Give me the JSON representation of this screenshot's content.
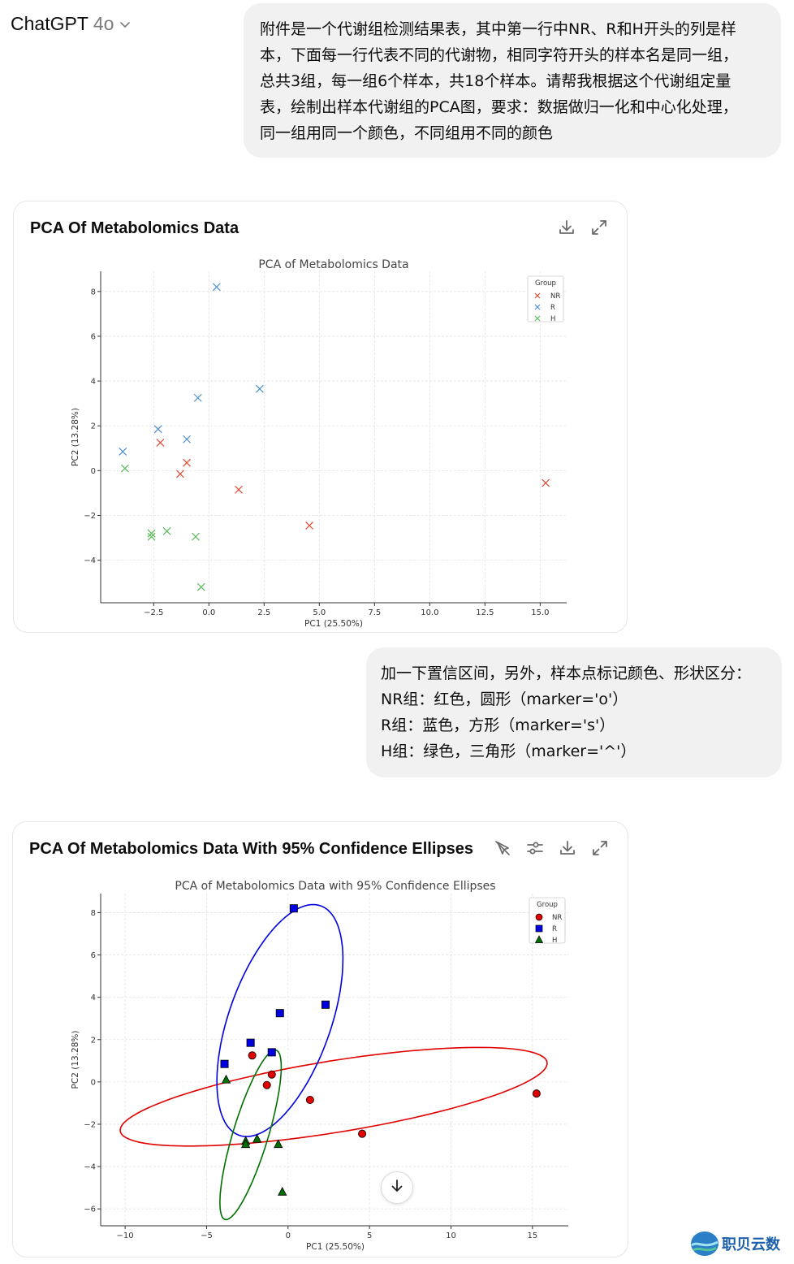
{
  "header": {
    "model_name": "ChatGPT",
    "model_version": "4o"
  },
  "messages": {
    "user1_lines": [
      "附件是一个代谢组检测结果表，其中第一行中NR、R和H开头的列是样",
      "本，下面每一行代表不同的代谢物，相同字符开头的样本名是同一组，",
      "总共3组，每一组6个样本，共18个样本。请帮我根据这个代谢组定量",
      "表，绘制出样本代谢组的PCA图，要求：数据做归一化和中心化处理，",
      "同一组用同一个颜色，不同组用不同的颜色"
    ],
    "user2_lines": [
      "加一下置信区间，另外，样本点标记颜色、形状区分：",
      "NR组：红色，圆形（marker='o'）",
      "R组：蓝色，方形（marker='s'）",
      "H组：绿色，三角形（marker='^'）"
    ]
  },
  "card1": {
    "title": "PCA Of Metabolomics Data"
  },
  "card2": {
    "title": "PCA Of Metabolomics Data With 95% Confidence Ellipses"
  },
  "icons": [
    "download-icon",
    "expand-icon",
    "interactive-off-icon",
    "settings-sliders-icon",
    "arrow-down-icon"
  ],
  "watermark": {
    "text": "职贝云数"
  },
  "chart_data": [
    {
      "type": "scatter",
      "title": "PCA of Metabolomics Data",
      "xlabel": "PC1 (25.50%)",
      "ylabel": "PC2 (13.28%)",
      "xlim": [
        -4.9,
        16.2
      ],
      "ylim": [
        -5.9,
        8.9
      ],
      "xticks": [
        -2.5,
        0.0,
        2.5,
        5.0,
        7.5,
        10.0,
        12.5,
        15.0
      ],
      "xtick_labels": [
        "−2.5",
        "0.0",
        "2.5",
        "5.0",
        "7.5",
        "10.0",
        "12.5",
        "15.0"
      ],
      "yticks": [
        -4,
        -2,
        0,
        2,
        4,
        6,
        8
      ],
      "ytick_labels": [
        "−4",
        "−2",
        "0",
        "2",
        "4",
        "6",
        "8"
      ],
      "grid": true,
      "legend_title": "Group",
      "legend_position": "top-right",
      "marker": "x",
      "series": [
        {
          "name": "NR",
          "color": "#e24a33",
          "points": [
            [
              -2.2,
              1.25
            ],
            [
              -1.0,
              0.35
            ],
            [
              -1.3,
              -0.15
            ],
            [
              1.35,
              -0.85
            ],
            [
              4.55,
              -2.45
            ],
            [
              15.25,
              -0.55
            ]
          ]
        },
        {
          "name": "R",
          "color": "#4c8fd2",
          "points": [
            [
              -3.9,
              0.85
            ],
            [
              -2.3,
              1.85
            ],
            [
              -1.0,
              1.4
            ],
            [
              -0.5,
              3.25
            ],
            [
              0.35,
              8.2
            ],
            [
              2.3,
              3.65
            ]
          ]
        },
        {
          "name": "H",
          "color": "#5cbb5c",
          "points": [
            [
              -3.8,
              0.1
            ],
            [
              -2.6,
              -2.8
            ],
            [
              -2.6,
              -2.95
            ],
            [
              -1.9,
              -2.7
            ],
            [
              -0.6,
              -2.95
            ],
            [
              -0.35,
              -5.2
            ]
          ]
        }
      ]
    },
    {
      "type": "scatter",
      "title": "PCA of Metabolomics Data with 95% Confidence Ellipses",
      "xlabel": "PC1 (25.50%)",
      "ylabel": "PC2 (13.28%)",
      "xlim": [
        -11.5,
        17.2
      ],
      "ylim": [
        -6.8,
        8.9
      ],
      "xticks": [
        -10,
        -5,
        0,
        5,
        10,
        15
      ],
      "xtick_labels": [
        "−10",
        "−5",
        "0",
        "5",
        "10",
        "15"
      ],
      "yticks": [
        -6,
        -4,
        -2,
        0,
        2,
        4,
        6,
        8
      ],
      "ytick_labels": [
        "−6",
        "−4",
        "−2",
        "0",
        "2",
        "4",
        "6",
        "8"
      ],
      "grid": true,
      "legend_title": "Group",
      "legend_position": "top-right",
      "series": [
        {
          "name": "NR",
          "color": "#e00000",
          "marker": "o",
          "points": [
            [
              -2.2,
              1.25
            ],
            [
              -1.0,
              0.35
            ],
            [
              -1.3,
              -0.15
            ],
            [
              1.35,
              -0.85
            ],
            [
              4.55,
              -2.45
            ],
            [
              15.25,
              -0.55
            ]
          ],
          "ellipse": {
            "center": [
              2.8,
              -0.7
            ],
            "semi_major": 13.2,
            "semi_minor": 1.7,
            "angle_deg": 7
          }
        },
        {
          "name": "R",
          "color": "#0000e0",
          "marker": "s",
          "points": [
            [
              -3.9,
              0.85
            ],
            [
              -2.3,
              1.85
            ],
            [
              -1.0,
              1.4
            ],
            [
              -0.5,
              3.25
            ],
            [
              0.35,
              8.2
            ],
            [
              2.3,
              3.65
            ]
          ],
          "ellipse": {
            "center": [
              -0.5,
              2.9
            ],
            "semi_major": 6.0,
            "semi_minor": 3.0,
            "angle_deg": 62
          }
        },
        {
          "name": "H",
          "color": "#007000",
          "marker": "^",
          "points": [
            [
              -3.8,
              0.1
            ],
            [
              -2.6,
              -2.8
            ],
            [
              -2.6,
              -2.95
            ],
            [
              -1.9,
              -2.7
            ],
            [
              -0.6,
              -2.95
            ],
            [
              -0.35,
              -5.2
            ]
          ],
          "ellipse": {
            "center": [
              -2.3,
              -2.5
            ],
            "semi_major": 4.3,
            "semi_minor": 1.05,
            "angle_deg": 68
          }
        }
      ]
    }
  ]
}
